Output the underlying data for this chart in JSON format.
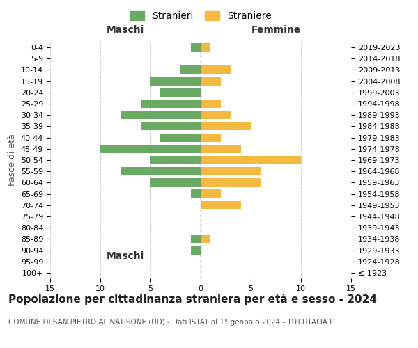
{
  "age_groups": [
    "100+",
    "95-99",
    "90-94",
    "85-89",
    "80-84",
    "75-79",
    "70-74",
    "65-69",
    "60-64",
    "55-59",
    "50-54",
    "45-49",
    "40-44",
    "35-39",
    "30-34",
    "25-29",
    "20-24",
    "15-19",
    "10-14",
    "5-9",
    "0-4"
  ],
  "birth_years": [
    "≤ 1923",
    "1924-1928",
    "1929-1933",
    "1934-1938",
    "1939-1943",
    "1944-1948",
    "1949-1953",
    "1954-1958",
    "1959-1963",
    "1964-1968",
    "1969-1973",
    "1974-1978",
    "1979-1983",
    "1984-1988",
    "1989-1993",
    "1994-1998",
    "1999-2003",
    "2004-2008",
    "2009-2013",
    "2014-2018",
    "2019-2023"
  ],
  "males": [
    0,
    0,
    1,
    1,
    0,
    0,
    0,
    1,
    5,
    8,
    5,
    10,
    4,
    6,
    8,
    6,
    4,
    5,
    2,
    0,
    1
  ],
  "females": [
    0,
    0,
    0,
    1,
    0,
    0,
    4,
    2,
    6,
    6,
    10,
    4,
    2,
    5,
    3,
    2,
    0,
    2,
    3,
    0,
    1
  ],
  "male_color": "#6aaa64",
  "female_color": "#f5b942",
  "bar_height": 0.75,
  "xlim": 15,
  "title": "Popolazione per cittadinanza straniera per età e sesso - 2024",
  "subtitle": "COMUNE DI SAN PIETRO AL NATISONE (UD) - Dati ISTAT al 1° gennaio 2024 - TUTTITALIA.IT",
  "ylabel_left": "Fasce di età",
  "label_maschi": "Maschi",
  "label_femmine": "Femmine",
  "legend_stranieri": "Stranieri",
  "legend_straniere": "Straniere",
  "background_color": "#ffffff",
  "grid_color": "#cccccc",
  "title_fontsize": 11,
  "subtitle_fontsize": 7.5,
  "tick_fontsize": 8,
  "label_fontsize": 9
}
